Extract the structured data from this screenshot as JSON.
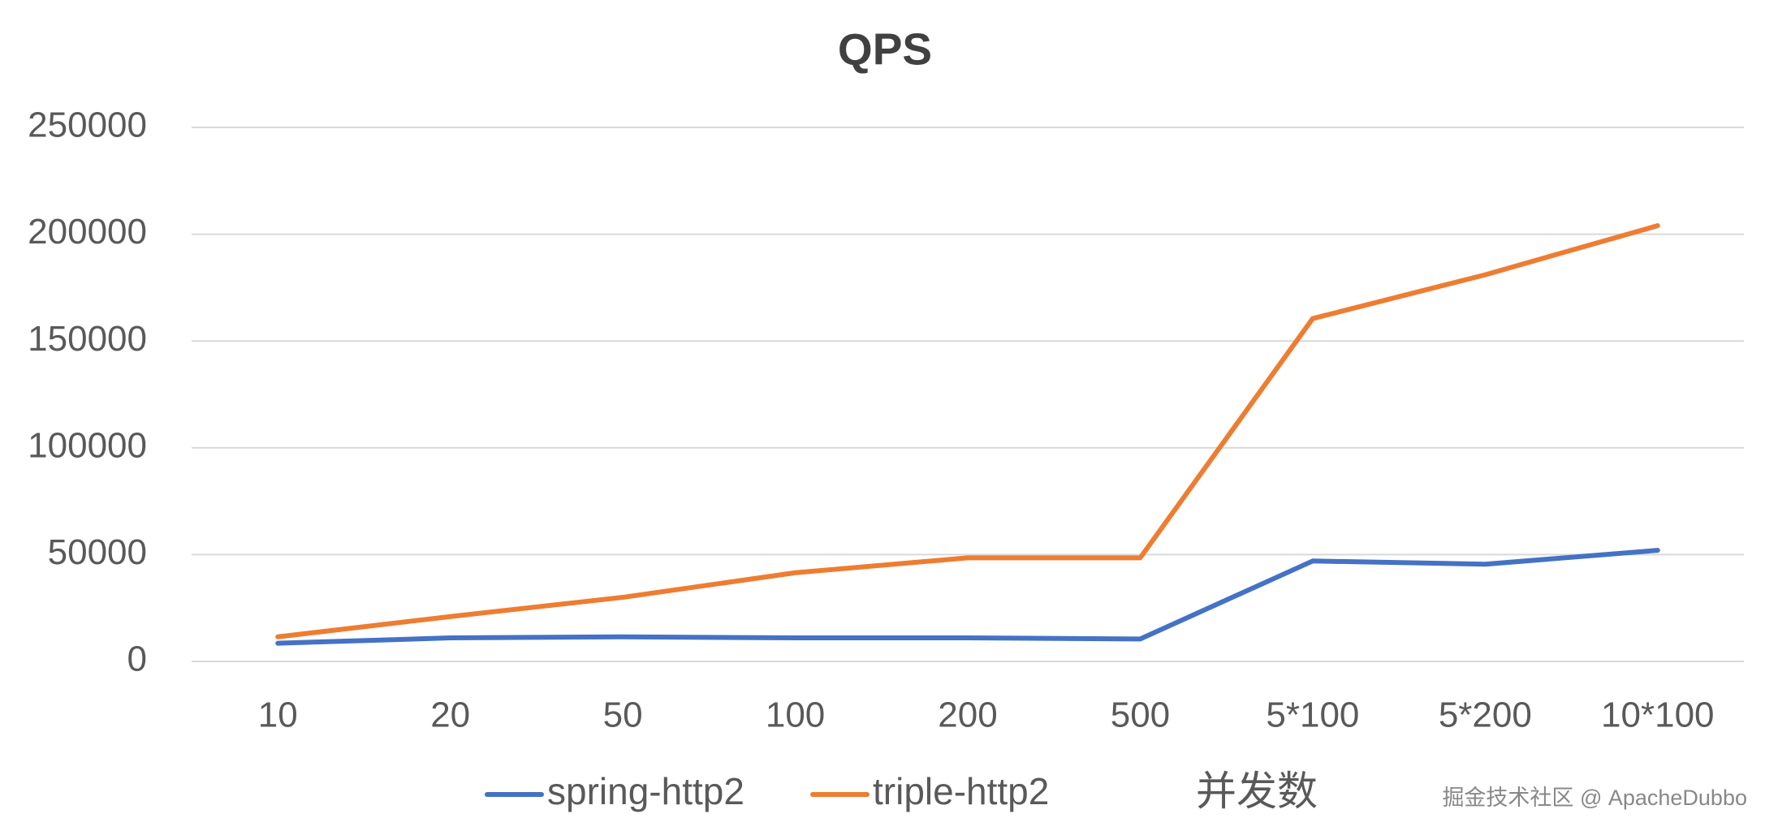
{
  "chart_data": {
    "type": "line",
    "title": "QPS",
    "x_label": "并发数",
    "watermark": "掘金技术社区 @ ApacheDubbo",
    "categories": [
      "10",
      "20",
      "50",
      "100",
      "200",
      "500",
      "5*100",
      "5*200",
      "10*100"
    ],
    "series": [
      {
        "name": "spring-http2",
        "color": "#4472c4",
        "values": [
          8500,
          11000,
          11500,
          11000,
          11000,
          10500,
          47000,
          45500,
          52000
        ]
      },
      {
        "name": "triple-http2",
        "color": "#ed7d31",
        "values": [
          11500,
          21000,
          30000,
          41500,
          48500,
          48500,
          160500,
          181000,
          204000
        ]
      }
    ],
    "ylim": [
      0,
      250000
    ],
    "yticks": [
      0,
      50000,
      100000,
      150000,
      200000,
      250000
    ],
    "grid": true
  }
}
